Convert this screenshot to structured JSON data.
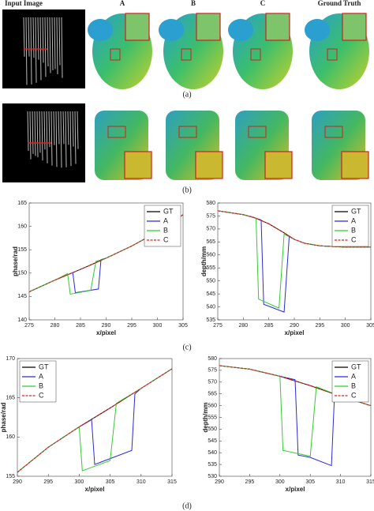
{
  "figure": {
    "headers": [
      "Input Image",
      "A",
      "B",
      "C",
      "Ground Truth"
    ],
    "panel_labels": [
      "(a)",
      "(b)",
      "(c)",
      "(d)"
    ]
  },
  "chart_data": [
    {
      "type": "line",
      "xlabel": "x/pixel",
      "ylabel": "phase/rad",
      "xlim": [
        275,
        305
      ],
      "ylim": [
        140,
        165
      ],
      "xticks": [
        275,
        280,
        285,
        290,
        295,
        300,
        305
      ],
      "yticks": [
        140,
        145,
        150,
        155,
        160,
        165
      ],
      "grid": false,
      "legend": "upper right",
      "series": [
        {
          "name": "GT",
          "color": "#000000",
          "linestyle": "solid",
          "x": [
            275,
            280,
            285,
            290,
            295,
            300,
            305
          ],
          "values": [
            146,
            148.5,
            150.8,
            153.2,
            155.8,
            158.8,
            162.5
          ]
        },
        {
          "name": "A",
          "color": "#2b2bd1",
          "linestyle": "solid",
          "x": [
            275,
            280,
            283.5,
            284,
            288.5,
            289,
            290,
            295,
            300,
            305
          ],
          "values": [
            146,
            148.5,
            150.1,
            145.8,
            146.6,
            152.9,
            153.2,
            155.8,
            158.8,
            162.5
          ]
        },
        {
          "name": "B",
          "color": "#33cc33",
          "linestyle": "solid",
          "x": [
            275,
            280,
            282.5,
            283,
            287,
            288,
            290,
            295,
            300,
            305
          ],
          "values": [
            146,
            148.5,
            149.9,
            145.5,
            146.3,
            152.5,
            153.2,
            155.8,
            158.8,
            162.5
          ]
        },
        {
          "name": "C",
          "color": "#e0201b",
          "linestyle": "dashed",
          "x": [
            275,
            280,
            285,
            290,
            295,
            300,
            305
          ],
          "values": [
            146,
            148.5,
            150.8,
            153.2,
            155.8,
            158.8,
            162.5
          ]
        }
      ]
    },
    {
      "type": "line",
      "xlabel": "x/pixel",
      "ylabel": "depth/mm",
      "xlim": [
        275,
        305
      ],
      "ylim": [
        535,
        580
      ],
      "xticks": [
        275,
        280,
        285,
        290,
        295,
        300,
        305
      ],
      "yticks": [
        535,
        540,
        545,
        550,
        555,
        560,
        565,
        570,
        575,
        580
      ],
      "grid": false,
      "legend": "upper right",
      "series": [
        {
          "name": "GT",
          "color": "#000000",
          "linestyle": "solid",
          "x": [
            275,
            280,
            282,
            285,
            288,
            290,
            292,
            295,
            300,
            305
          ],
          "values": [
            577,
            575.5,
            574.5,
            572,
            568.5,
            566,
            564.5,
            563.5,
            563,
            563
          ]
        },
        {
          "name": "A",
          "color": "#2b2bd1",
          "linestyle": "solid",
          "x": [
            275,
            280,
            283.5,
            284,
            288,
            289,
            290,
            292,
            295,
            300,
            305
          ],
          "values": [
            577,
            575.5,
            573.5,
            541,
            538,
            567,
            566,
            564.5,
            563.5,
            563,
            563
          ]
        },
        {
          "name": "B",
          "color": "#33cc33",
          "linestyle": "solid",
          "x": [
            275,
            280,
            282.5,
            283,
            287,
            288,
            290,
            292,
            295,
            300,
            305
          ],
          "values": [
            577,
            575.5,
            574.2,
            543,
            539.5,
            568,
            566,
            564.5,
            563.5,
            563,
            563
          ]
        },
        {
          "name": "C",
          "color": "#e0201b",
          "linestyle": "dashed",
          "x": [
            275,
            280,
            282,
            285,
            288,
            290,
            292,
            295,
            300,
            305
          ],
          "values": [
            577,
            575.5,
            574.5,
            572,
            568.5,
            566,
            564.5,
            563.5,
            563,
            563
          ]
        }
      ]
    },
    {
      "type": "line",
      "xlabel": "x/pixel",
      "ylabel": "phase/rad",
      "xlim": [
        290,
        315
      ],
      "ylim": [
        155,
        170
      ],
      "xticks": [
        290,
        295,
        300,
        305,
        310,
        315
      ],
      "yticks": [
        155,
        160,
        165,
        170
      ],
      "grid": false,
      "legend": "upper left",
      "series": [
        {
          "name": "GT",
          "color": "#000000",
          "linestyle": "solid",
          "x": [
            290,
            295,
            300,
            305,
            310,
            315
          ],
          "values": [
            155.5,
            158.7,
            161.3,
            163.7,
            166.2,
            168.7
          ]
        },
        {
          "name": "A",
          "color": "#2b2bd1",
          "linestyle": "solid",
          "x": [
            290,
            295,
            300,
            302,
            302.5,
            308.5,
            309,
            310,
            315
          ],
          "values": [
            155.5,
            158.7,
            161.3,
            162.2,
            156.5,
            158.3,
            165.5,
            166.2,
            168.7
          ]
        },
        {
          "name": "B",
          "color": "#33cc33",
          "linestyle": "solid",
          "x": [
            290,
            295,
            300,
            300.5,
            305,
            306,
            310,
            315
          ],
          "values": [
            155.5,
            158.7,
            161.3,
            155.7,
            157,
            164.3,
            166.2,
            168.7
          ]
        },
        {
          "name": "C",
          "color": "#e0201b",
          "linestyle": "dashed",
          "x": [
            290,
            295,
            300,
            305,
            310,
            315
          ],
          "values": [
            155.5,
            158.7,
            161.3,
            163.7,
            166.2,
            168.7
          ]
        }
      ]
    },
    {
      "type": "line",
      "xlabel": "x/pixel",
      "ylabel": "depth/mm",
      "xlim": [
        290,
        315
      ],
      "ylim": [
        530,
        580
      ],
      "xticks": [
        290,
        295,
        300,
        305,
        310,
        315
      ],
      "yticks": [
        530,
        535,
        540,
        545,
        550,
        555,
        560,
        565,
        570,
        575,
        580
      ],
      "grid": false,
      "legend": "upper right",
      "series": [
        {
          "name": "GT",
          "color": "#000000",
          "linestyle": "solid",
          "x": [
            290,
            295,
            300,
            305,
            310,
            315
          ],
          "values": [
            577,
            575.5,
            572.5,
            568.5,
            564,
            560
          ]
        },
        {
          "name": "A",
          "color": "#2b2bd1",
          "linestyle": "solid",
          "x": [
            290,
            295,
            300,
            302.5,
            303,
            305,
            308.5,
            309,
            310,
            315
          ],
          "values": [
            577,
            575.5,
            572.5,
            571,
            539,
            538,
            534.5,
            564.5,
            564,
            560
          ]
        },
        {
          "name": "B",
          "color": "#33cc33",
          "linestyle": "solid",
          "x": [
            290,
            295,
            300,
            300.5,
            305,
            306,
            310,
            315
          ],
          "values": [
            577,
            575.5,
            572.5,
            541,
            538.5,
            568,
            564,
            560
          ]
        },
        {
          "name": "C",
          "color": "#e0201b",
          "linestyle": "dashed",
          "x": [
            290,
            295,
            300,
            305,
            310,
            315
          ],
          "values": [
            577,
            575.5,
            572.5,
            568.5,
            564,
            560
          ]
        }
      ]
    }
  ]
}
